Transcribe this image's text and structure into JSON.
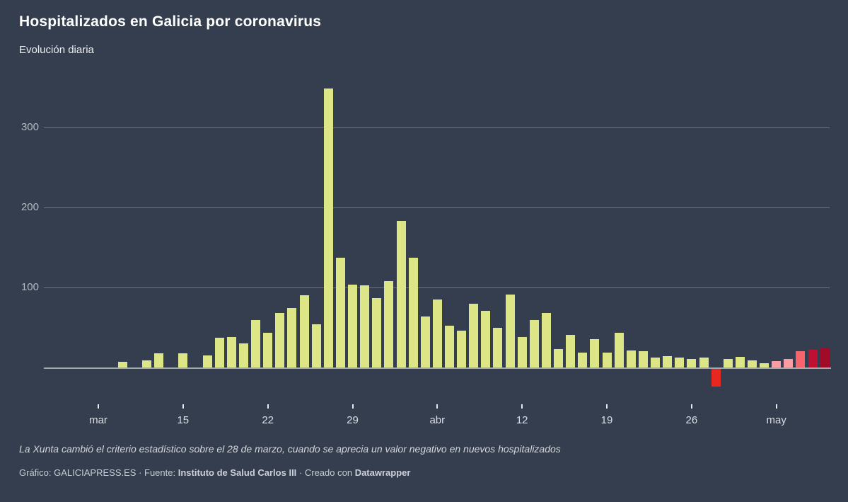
{
  "header": {
    "title": "Hospitalizados en Galicia por coronavirus",
    "subtitle": "Evolución diaria"
  },
  "footer": {
    "note": "La Xunta cambió el criterio estadístico sobre el 28 de marzo, cuando se aprecia un valor negativo en nuevos hospitalizados",
    "credit_grafico": "Gráfico: GALICIAPRESS.ES",
    "sep1": " · ",
    "fuente_label": "Fuente: ",
    "fuente_value": "Instituto de Salud Carlos III",
    "sep2": " · ",
    "creado_label": "Creado con ",
    "creado_tool": "Datawrapper"
  },
  "colors": {
    "background": "#343e4e",
    "bar_default": "#dce687",
    "bar_negative": "#e82720",
    "bar_pink": "#f99ca4",
    "bar_salmon": "#f8646c",
    "bar_crimson": "#c01031",
    "bar_darkred": "#a00c27",
    "gridline": "rgba(255,255,255,0.28)",
    "axis_label": "#b3bac3"
  },
  "chart_data": {
    "type": "bar",
    "title": "Hospitalizados en Galicia por coronavirus",
    "subtitle": "Evolución diaria",
    "xlabel": "",
    "ylabel": "",
    "grid": true,
    "legend": "none",
    "ylim": [
      -40,
      370
    ],
    "y_axis_ticks": [
      100,
      200,
      300
    ],
    "x_ticks": [
      {
        "label": "mar",
        "date": "2020-03-08"
      },
      {
        "label": "15",
        "date": "2020-03-15"
      },
      {
        "label": "22",
        "date": "2020-03-22"
      },
      {
        "label": "29",
        "date": "2020-03-29"
      },
      {
        "label": "abr",
        "date": "2020-04-05"
      },
      {
        "label": "12",
        "date": "2020-04-12"
      },
      {
        "label": "19",
        "date": "2020-04-19"
      },
      {
        "label": "26",
        "date": "2020-04-26"
      },
      {
        "label": "may",
        "date": "2020-05-03"
      }
    ],
    "dates": [
      "2020-03-04",
      "2020-03-05",
      "2020-03-06",
      "2020-03-07",
      "2020-03-08",
      "2020-03-09",
      "2020-03-10",
      "2020-03-11",
      "2020-03-12",
      "2020-03-13",
      "2020-03-14",
      "2020-03-15",
      "2020-03-16",
      "2020-03-17",
      "2020-03-18",
      "2020-03-19",
      "2020-03-20",
      "2020-03-21",
      "2020-03-22",
      "2020-03-23",
      "2020-03-24",
      "2020-03-25",
      "2020-03-26",
      "2020-03-27",
      "2020-03-28",
      "2020-03-29",
      "2020-03-30",
      "2020-03-31",
      "2020-04-01",
      "2020-04-02",
      "2020-04-03",
      "2020-04-04",
      "2020-04-05",
      "2020-04-06",
      "2020-04-07",
      "2020-04-08",
      "2020-04-09",
      "2020-04-10",
      "2020-04-11",
      "2020-04-12",
      "2020-04-13",
      "2020-04-14",
      "2020-04-15",
      "2020-04-16",
      "2020-04-17",
      "2020-04-18",
      "2020-04-19",
      "2020-04-20",
      "2020-04-21",
      "2020-04-22",
      "2020-04-23",
      "2020-04-24",
      "2020-04-25",
      "2020-04-26",
      "2020-04-27",
      "2020-04-28",
      "2020-04-29",
      "2020-04-30",
      "2020-05-01",
      "2020-05-02",
      "2020-05-03",
      "2020-05-04",
      "2020-05-05",
      "2020-05-06",
      "2020-05-07"
    ],
    "values": [
      0,
      0,
      0,
      0,
      0,
      0,
      7,
      0,
      9,
      18,
      0,
      18,
      0,
      15,
      37,
      38,
      30,
      59,
      43,
      68,
      74,
      90,
      54,
      349,
      137,
      104,
      103,
      87,
      108,
      183,
      137,
      64,
      85,
      52,
      46,
      80,
      71,
      50,
      91,
      38,
      59,
      68,
      23,
      41,
      19,
      35,
      19,
      43,
      21,
      20,
      12,
      14,
      12,
      11,
      12,
      -22,
      11,
      13,
      9,
      5,
      8,
      11,
      20,
      22,
      25
    ],
    "bar_color_overrides": {
      "2020-04-28": "#e82720",
      "2020-05-03": "#f99ca4",
      "2020-05-04": "#f99ca4",
      "2020-05-05": "#f8646c",
      "2020-05-06": "#c01031",
      "2020-05-07": "#a00c27"
    }
  }
}
